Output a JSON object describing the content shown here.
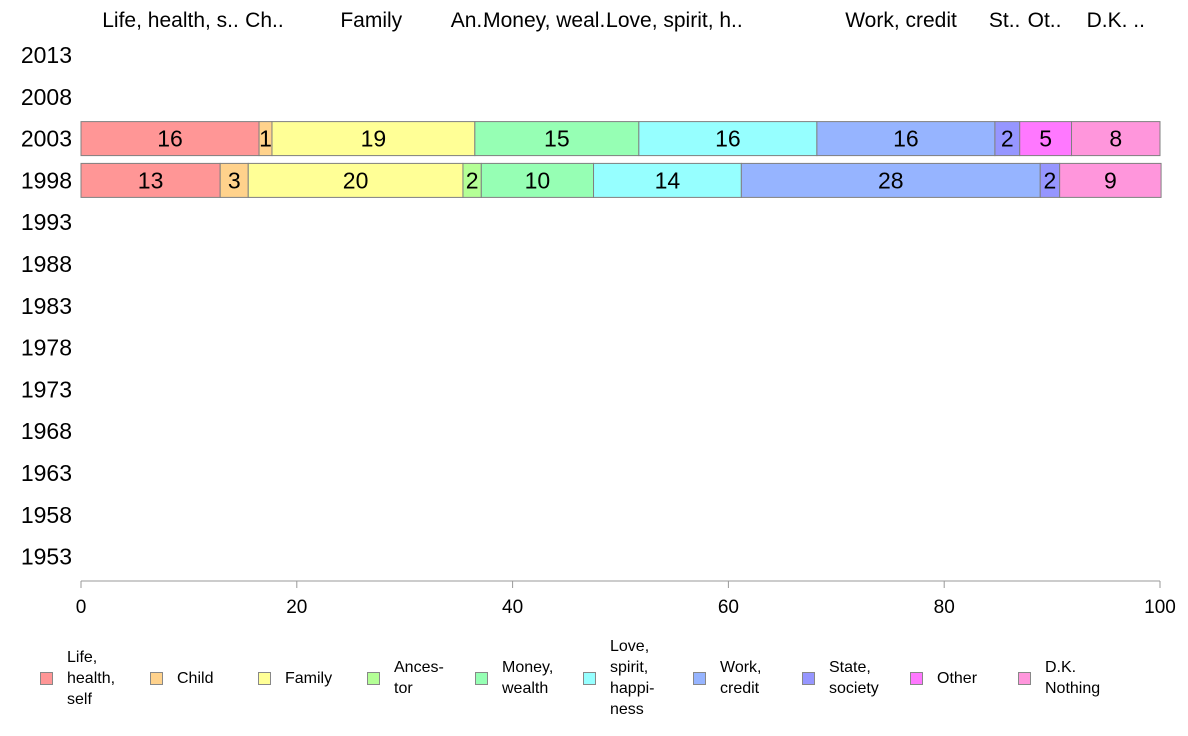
{
  "chart_data": {
    "type": "bar",
    "orientation": "horizontal",
    "stacked": true,
    "xlim": [
      0,
      100
    ],
    "x_ticks": [
      0,
      20,
      40,
      60,
      80,
      100
    ],
    "years": [
      "2013",
      "2008",
      "2003",
      "1998",
      "1993",
      "1988",
      "1983",
      "1978",
      "1973",
      "1968",
      "1963",
      "1958",
      "1953"
    ],
    "column_headers": [
      "Life, health, s..",
      "Ch..",
      "Family",
      "An..",
      "Money, weal..",
      "Love, spirit, h..",
      "Work, credit",
      "St..",
      "Ot..",
      "D.K. .."
    ],
    "column_header_positions": [
      8.3,
      17.0,
      26.9,
      36.0,
      43.2,
      55.0,
      76.0,
      85.6,
      89.3,
      95.9
    ],
    "categories": [
      {
        "name": "Life,\nhealth,\nself",
        "color": "#ff9696"
      },
      {
        "name": "Child",
        "color": "#ffd28c"
      },
      {
        "name": "Family",
        "color": "#ffff96"
      },
      {
        "name": "Ances-\ntor",
        "color": "#b4ff96"
      },
      {
        "name": "Money,\nwealth",
        "color": "#96ffb4"
      },
      {
        "name": "Love,\nspirit,\nhappi-\nness",
        "color": "#96ffff"
      },
      {
        "name": "Work,\ncredit",
        "color": "#96b4ff"
      },
      {
        "name": "State,\nsociety",
        "color": "#9696ff"
      },
      {
        "name": "Other",
        "color": "#ff78ff"
      },
      {
        "name": "D.K.\nNothing",
        "color": "#ff96dc"
      }
    ],
    "series": [
      {
        "year": "2003",
        "values": [
          16.5,
          1.2,
          18.8,
          0,
          15.2,
          16.5,
          16.5,
          2.3,
          4.8,
          8.2
        ],
        "labels": [
          "16",
          "1",
          "19",
          "",
          "15",
          "16",
          "16",
          "2",
          "5",
          "8"
        ]
      },
      {
        "year": "1998",
        "values": [
          12.9,
          2.6,
          19.9,
          1.7,
          10.4,
          13.7,
          27.7,
          1.8,
          0,
          9.4
        ],
        "labels": [
          "13",
          "3",
          "20",
          "2",
          "10",
          "14",
          "28",
          "2",
          "",
          "9"
        ]
      }
    ]
  }
}
